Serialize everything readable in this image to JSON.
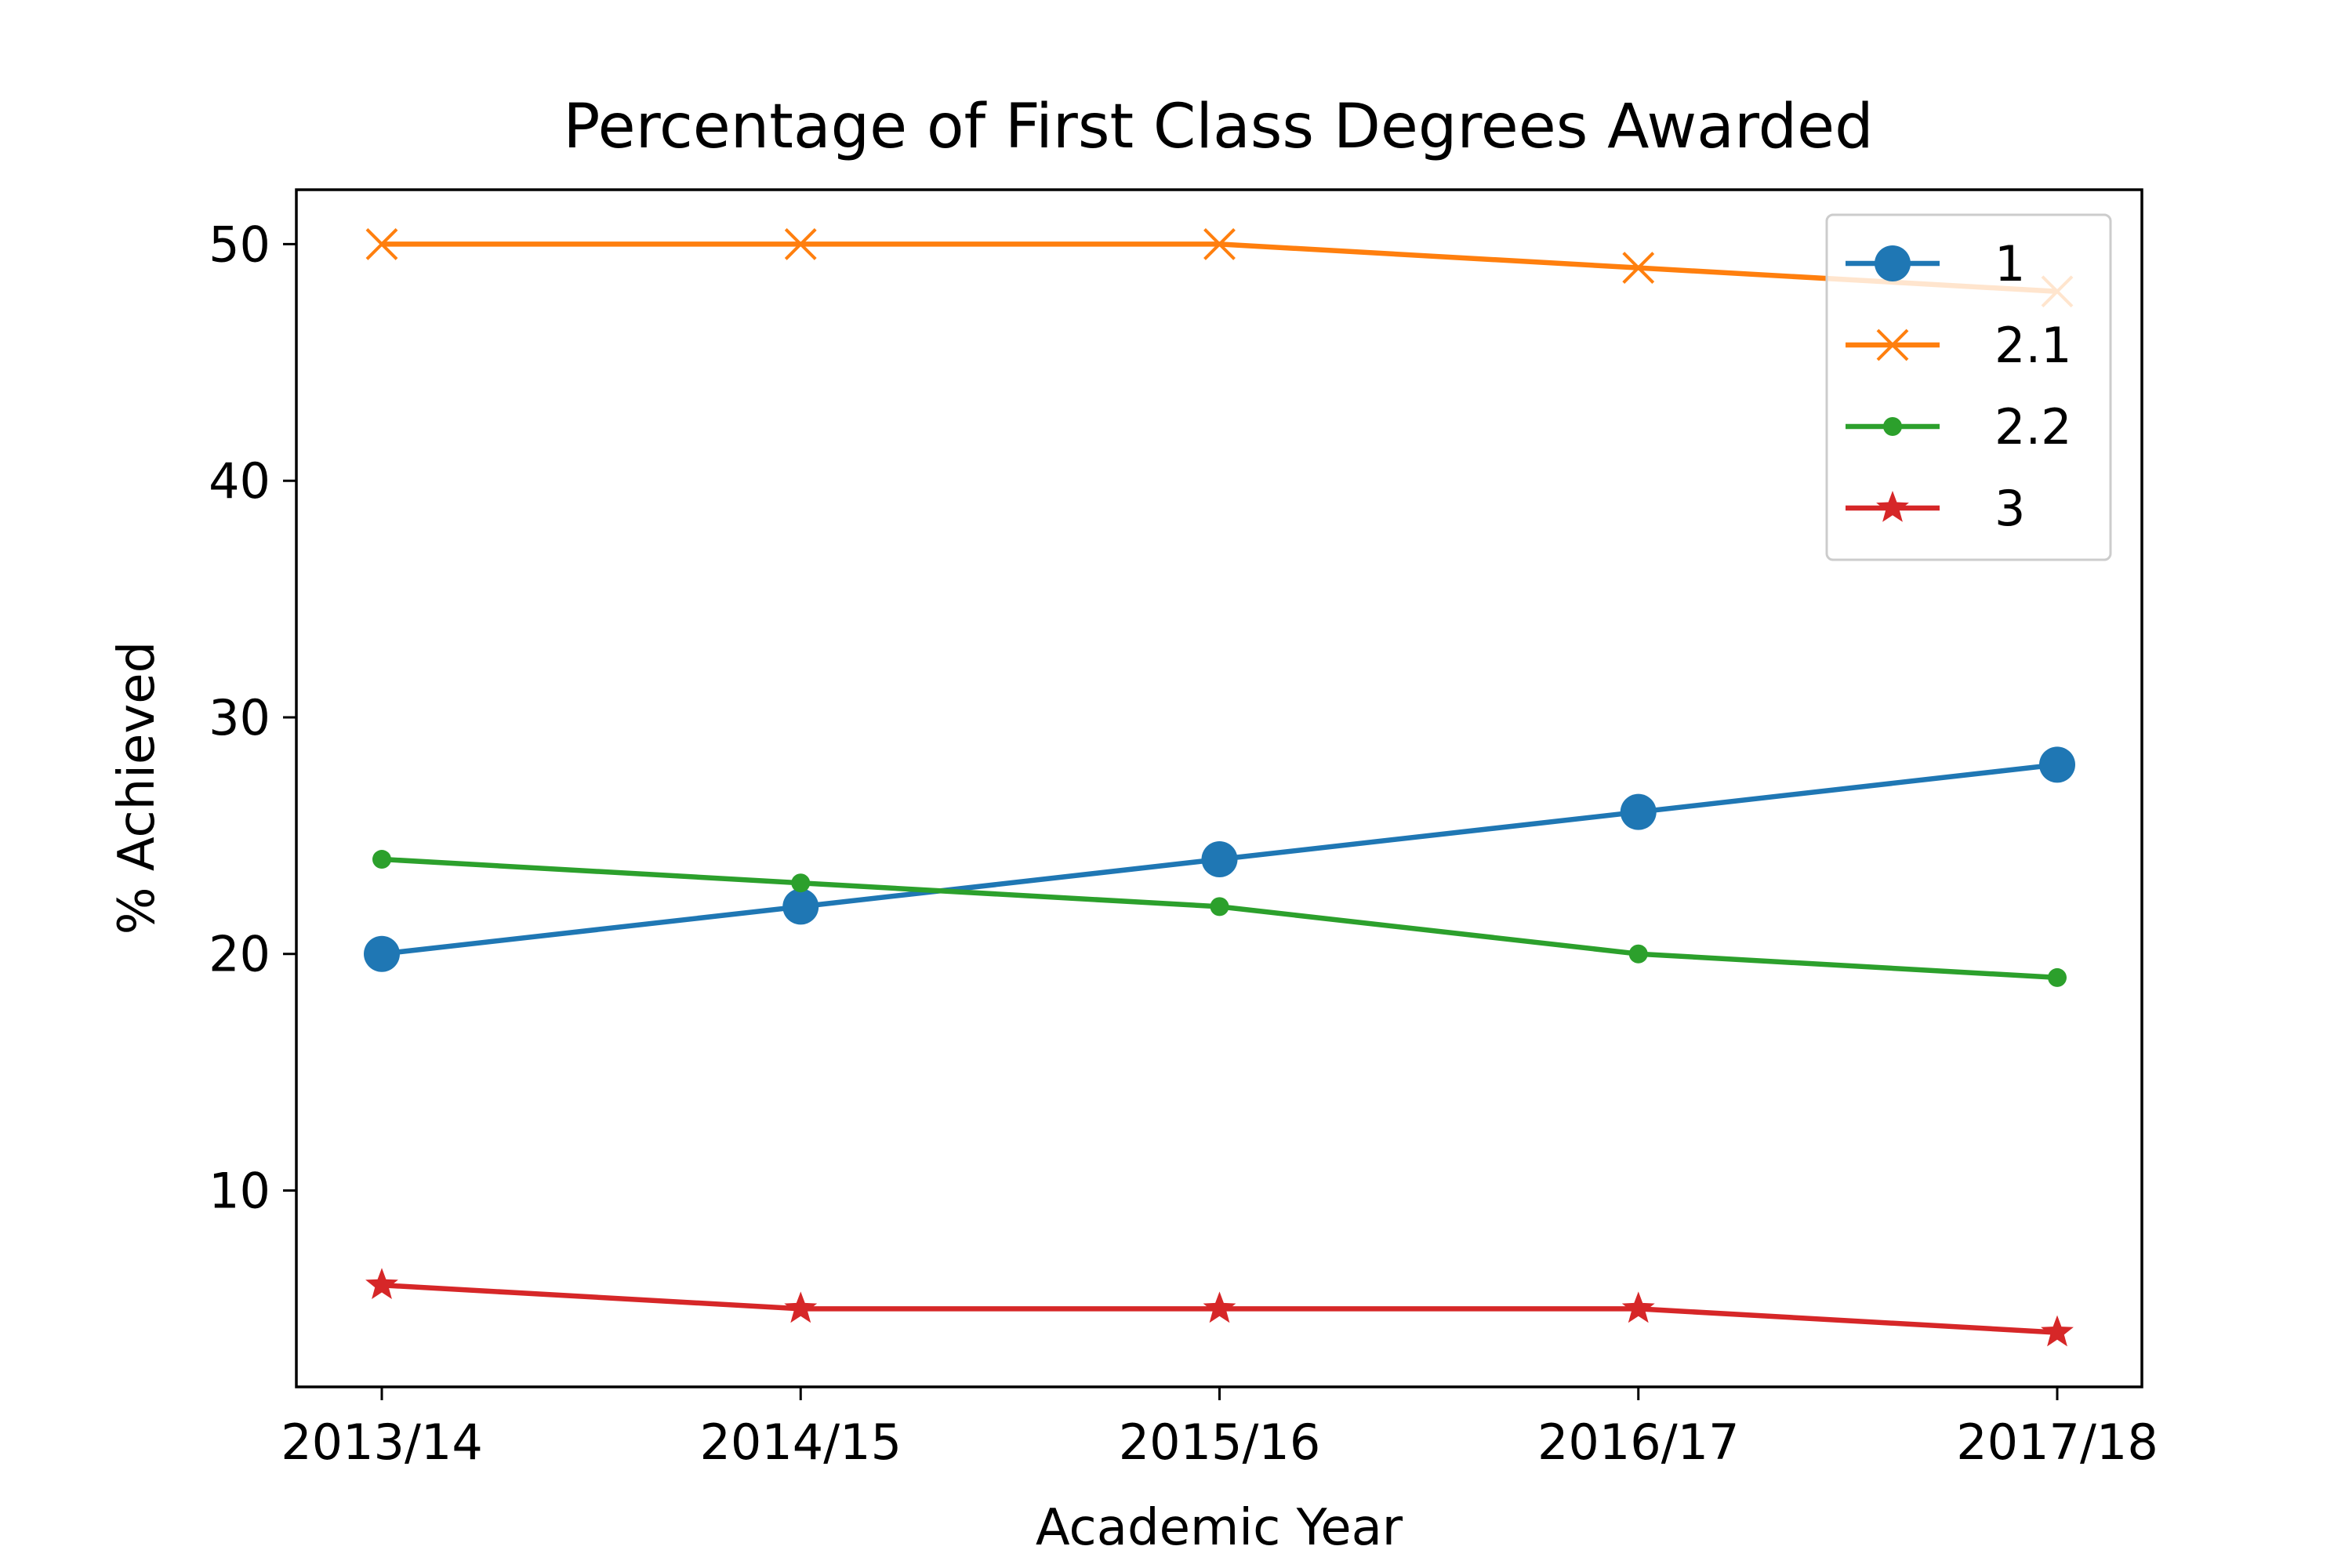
{
  "chart_data": {
    "type": "line",
    "title": "Percentage of First Class Degrees Awarded",
    "xlabel": "Academic Year",
    "ylabel": "% Achieved",
    "categories": [
      "2013/14",
      "2014/15",
      "2015/16",
      "2016/17",
      "2017/18"
    ],
    "y_ticks": [
      10,
      20,
      30,
      40,
      50
    ],
    "ylim": [
      1.7,
      52.3
    ],
    "grid": false,
    "legend_position": "top-right",
    "series": [
      {
        "name": "1",
        "values": [
          20,
          22,
          24,
          26,
          28
        ],
        "color": "#1f77b4",
        "marker": "circle"
      },
      {
        "name": "2.1",
        "values": [
          50,
          50,
          50,
          49,
          48
        ],
        "color": "#ff7f0e",
        "marker": "x"
      },
      {
        "name": "2.2",
        "values": [
          24,
          23,
          22,
          20,
          19
        ],
        "color": "#2ca02c",
        "marker": "point"
      },
      {
        "name": "3",
        "values": [
          6,
          5,
          5,
          5,
          4
        ],
        "color": "#d62728",
        "marker": "star"
      }
    ]
  }
}
